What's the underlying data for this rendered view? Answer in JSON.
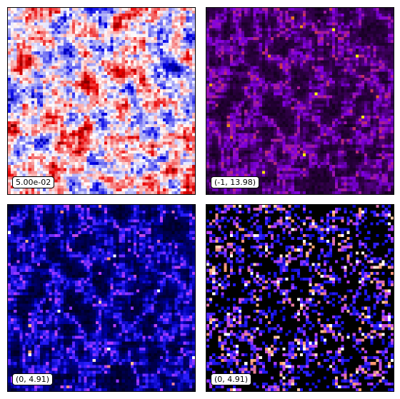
{
  "panels": [
    {
      "id": "p1",
      "label": "5.00e-02",
      "colormap": "seismic-bwr"
    },
    {
      "id": "p2",
      "label": "(-1, 13.98)",
      "colormap": "gnuplot"
    },
    {
      "id": "p3",
      "label": "(0, 4.91)",
      "colormap": "gnuplot2"
    },
    {
      "id": "p4",
      "label": "(0, 4.91)",
      "colormap": "gnuplot2"
    }
  ]
}
